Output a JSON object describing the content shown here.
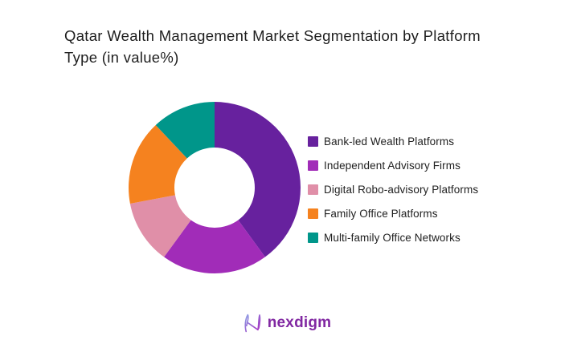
{
  "title": {
    "line1": "Qatar Wealth Management Market Segmentation by Platform",
    "line2": "Type (in value%)"
  },
  "chart_data": {
    "type": "pie",
    "subtype": "donut",
    "title": "Qatar Wealth Management Market Segmentation by Platform Type (in value%)",
    "labels": [
      "Bank-led Wealth Platforms",
      "Independent Advisory Firms",
      "Digital Robo-advisory Platforms",
      "Family Office Platforms",
      "Multi-family Office Networks"
    ],
    "values": [
      40,
      20,
      12,
      16,
      12
    ],
    "unit": "value %",
    "colors": [
      "#67219E",
      "#A12CB8",
      "#E08FA8",
      "#F5821F",
      "#00968A"
    ],
    "start_angle_deg": 0,
    "direction": "clockwise",
    "inner_radius_ratio": 0.47,
    "legend_position": "right",
    "data_labels_shown": false
  },
  "logo": {
    "text": "nexdigm",
    "icon": "nexdigm-n-icon",
    "text_color": "#8128a2",
    "icon_gradient": [
      "#8fa3e6",
      "#a82bc0"
    ]
  }
}
